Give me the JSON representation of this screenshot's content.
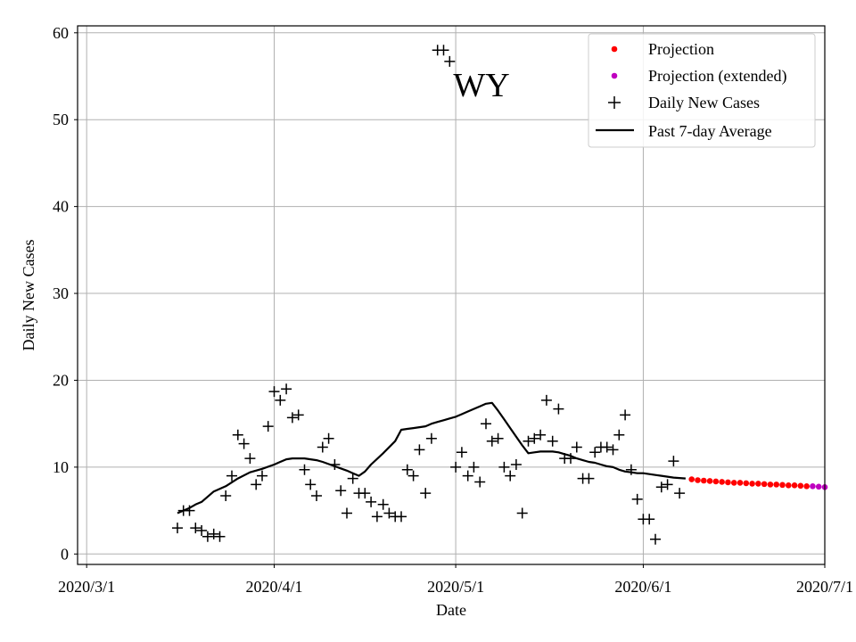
{
  "chart_data": {
    "type": "scatter",
    "title": "",
    "annotation": "WY",
    "xlabel": "Date",
    "ylabel": "Daily New Cases",
    "xlim": [
      -1.5,
      122
    ],
    "ylim": [
      -1.2,
      60.8
    ],
    "x_ticks": [
      {
        "label": "2020/3/1",
        "day": 0
      },
      {
        "label": "2020/4/1",
        "day": 31
      },
      {
        "label": "2020/5/1",
        "day": 61
      },
      {
        "label": "2020/6/1",
        "day": 92
      },
      {
        "label": "2020/7/1",
        "day": 122
      }
    ],
    "y_ticks": [
      0,
      10,
      20,
      30,
      40,
      50,
      60
    ],
    "grid": true,
    "legend_position": "upper-right",
    "colors": {
      "projection": "#ff0000",
      "projection_extended": "#bf00bf",
      "daily": "#000000",
      "average": "#000000"
    },
    "series": [
      {
        "name": "Projection",
        "kind": "dot",
        "x": [
          100,
          101,
          102,
          103,
          104,
          105,
          106,
          107,
          108,
          109,
          110,
          111,
          112,
          113,
          114,
          115,
          116,
          117,
          118,
          119
        ],
        "y": [
          8.6,
          8.5,
          8.45,
          8.4,
          8.35,
          8.3,
          8.25,
          8.2,
          8.2,
          8.15,
          8.1,
          8.1,
          8.05,
          8.0,
          8.0,
          7.95,
          7.9,
          7.9,
          7.85,
          7.8
        ]
      },
      {
        "name": "Projection (extended)",
        "kind": "dot",
        "x": [
          120,
          121,
          122
        ],
        "y": [
          7.8,
          7.75,
          7.7
        ]
      },
      {
        "name": "Daily New Cases",
        "kind": "plus",
        "x": [
          15,
          16,
          17,
          18,
          19,
          20,
          21,
          22,
          23,
          24,
          25,
          26,
          27,
          28,
          29,
          30,
          31,
          32,
          33,
          34,
          35,
          36,
          37,
          38,
          39,
          40,
          41,
          42,
          43,
          44,
          45,
          46,
          47,
          48,
          49,
          50,
          51,
          52,
          53,
          54,
          55,
          56,
          57,
          58,
          59,
          60,
          61,
          62,
          63,
          64,
          65,
          66,
          67,
          68,
          69,
          70,
          71,
          72,
          73,
          74,
          75,
          76,
          77,
          78,
          79,
          80,
          81,
          82,
          83,
          84,
          85,
          86,
          87,
          88,
          89,
          90,
          91,
          92,
          93,
          94,
          95,
          96,
          97,
          98
        ],
        "y": [
          3,
          5,
          5,
          3,
          2.7,
          2,
          2.3,
          2,
          6.7,
          9,
          13.7,
          12.7,
          11,
          8,
          9,
          14.7,
          18.7,
          17.7,
          19,
          15.7,
          16,
          9.7,
          8,
          6.7,
          12.3,
          13.3,
          10.3,
          7.3,
          4.7,
          8.7,
          7,
          7,
          6,
          4.3,
          5.7,
          4.7,
          4.3,
          4.3,
          9.7,
          9,
          12,
          7,
          13.3,
          58,
          58,
          56.7,
          10,
          11.7,
          9,
          10,
          8.3,
          15,
          13,
          13.3,
          10,
          9,
          10.3,
          4.7,
          13,
          13.3,
          13.7,
          17.7,
          13,
          16.7,
          11,
          11,
          12.3,
          8.7,
          8.7,
          11.7,
          12.3,
          12.3,
          12,
          13.7,
          16,
          9.7,
          6.3,
          4,
          4,
          1.7,
          7.7,
          8,
          10.7,
          7
        ]
      },
      {
        "name": "Past 7-day Average",
        "kind": "line",
        "x": [
          15,
          16,
          17,
          18,
          19,
          21,
          23,
          25,
          27,
          29,
          31,
          32,
          33,
          34,
          35,
          36,
          37,
          38,
          39,
          41,
          43,
          44,
          45,
          46,
          47,
          49,
          51,
          52,
          53,
          54,
          55,
          56,
          57,
          58,
          59,
          60,
          61,
          62,
          63,
          64,
          65,
          66,
          67,
          68,
          69,
          70,
          71,
          72,
          73,
          74,
          75,
          76,
          77,
          78,
          79,
          80,
          81,
          82,
          83,
          84,
          85,
          86,
          87,
          88,
          89,
          90,
          91,
          92,
          93,
          94,
          95,
          96,
          97,
          98,
          99
        ],
        "y": [
          4.7,
          5,
          5.3,
          5.7,
          6,
          7.2,
          7.8,
          8.7,
          9.4,
          9.8,
          10.3,
          10.6,
          10.9,
          11,
          11,
          11,
          10.9,
          10.8,
          10.6,
          10.1,
          9.6,
          9.3,
          9,
          9.5,
          10.3,
          11.6,
          13,
          14.3,
          14.4,
          14.5,
          14.6,
          14.7,
          15,
          15.2,
          15.4,
          15.6,
          15.8,
          16.1,
          16.4,
          16.7,
          17,
          17.3,
          17.4,
          16.5,
          15.5,
          14.5,
          13.5,
          12.5,
          11.6,
          11.7,
          11.8,
          11.8,
          11.8,
          11.7,
          11.5,
          11.3,
          11,
          10.8,
          10.6,
          10.5,
          10.3,
          10.1,
          10,
          9.7,
          9.5,
          9.4,
          9.3,
          9.3,
          9.2,
          9.1,
          9,
          8.9,
          8.8,
          8.75,
          8.7
        ]
      }
    ]
  }
}
